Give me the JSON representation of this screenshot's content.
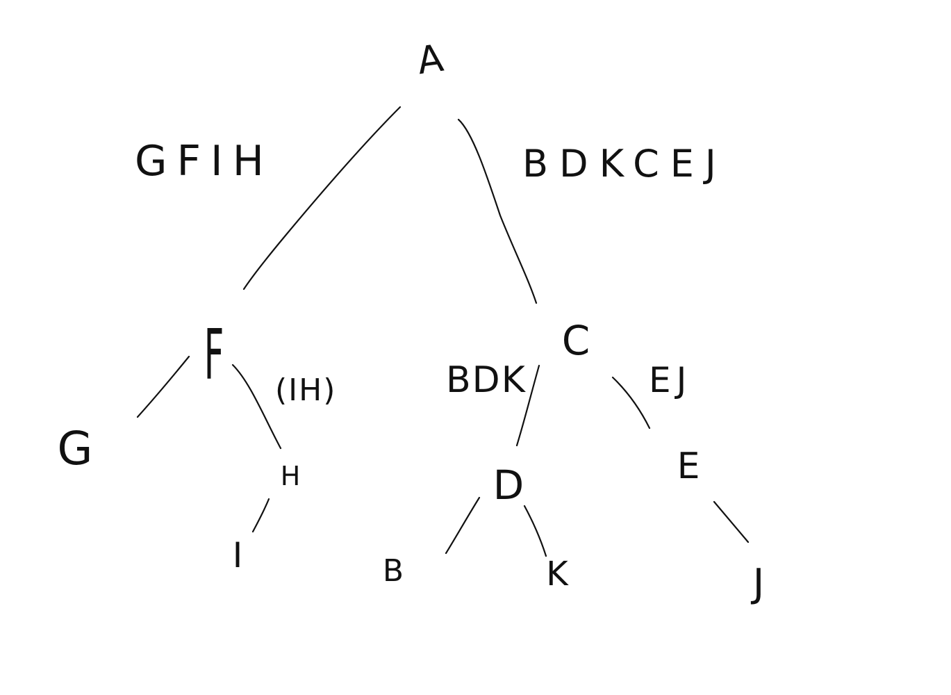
{
  "diagram": {
    "stroke_color": "#111111",
    "background": "#ffffff",
    "nodes": {
      "root": "A",
      "f": "F",
      "c": "C",
      "g": "G",
      "h": "H",
      "i": "I",
      "d": "D",
      "e": "E",
      "b": "B",
      "k": "K",
      "j": "J"
    },
    "subset_labels": {
      "left_of_root": "GFIH",
      "right_of_root": "BDKCEJ",
      "right_of_f": "(IH)",
      "left_of_c": "BDK",
      "right_of_c": "EJ"
    }
  }
}
